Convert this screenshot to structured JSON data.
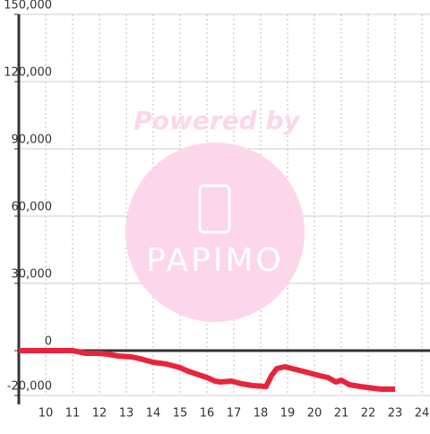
{
  "chart_data": {
    "type": "line",
    "watermark": {
      "title": "Powered by",
      "logo": "PAPIMO"
    },
    "x": [
      9,
      11,
      11.5,
      12,
      12.3,
      12.7,
      13.2,
      13.5,
      14,
      14.5,
      15,
      15.3,
      15.7,
      16,
      16.3,
      16.5,
      16.9,
      17.3,
      17.7,
      18.2,
      18.4,
      18.6,
      18.9,
      19.3,
      19.7,
      20.2,
      20.5,
      20.8,
      21,
      21.3,
      21.7,
      22.2,
      22.5,
      23
    ],
    "series": [
      {
        "color": "#e8243c",
        "values": [
          0,
          0,
          -1200,
          -1200,
          -1600,
          -2400,
          -2800,
          -3600,
          -5200,
          -6000,
          -7600,
          -9200,
          -10800,
          -12000,
          -13600,
          -14000,
          -13600,
          -14800,
          -15600,
          -16000,
          -11200,
          -8000,
          -7200,
          -8400,
          -9600,
          -11200,
          -12000,
          -14000,
          -13200,
          -15200,
          -16000,
          -16800,
          -17200,
          -17200
        ]
      }
    ],
    "xlim": [
      9,
      24.3
    ],
    "xticks": [
      10,
      11,
      12,
      13,
      14,
      15,
      16,
      17,
      18,
      19,
      20,
      21,
      22,
      23,
      24
    ],
    "ylim": [
      -20000,
      150000
    ],
    "yticks": [
      {
        "value": -20000,
        "label": "-20,000"
      },
      0,
      {
        "value": 30000,
        "label": "30,000"
      },
      {
        "value": 60000,
        "label": "60,000"
      },
      {
        "value": 90000,
        "label": "90,000"
      },
      {
        "value": 120000,
        "label": "120,000"
      },
      {
        "value": 150000,
        "label": "150,000"
      }
    ],
    "grid": true
  }
}
